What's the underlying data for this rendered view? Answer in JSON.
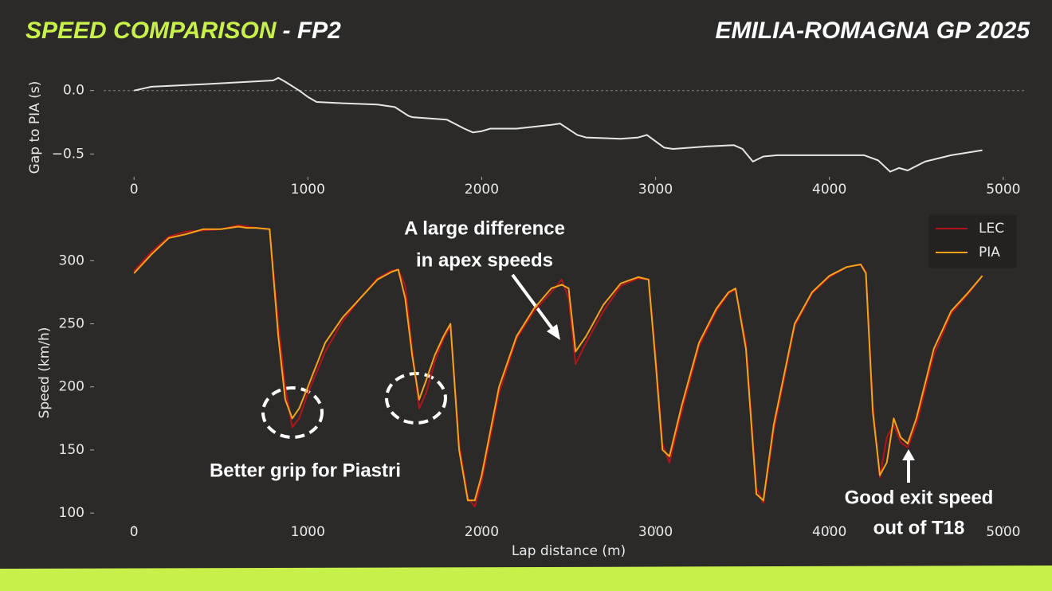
{
  "header": {
    "title": "SPEED COMPARISON",
    "session": "- FP2",
    "event": "EMILIA-ROMAGNA GP 2025"
  },
  "chart_data": [
    {
      "type": "line",
      "ylabel": "Gap to PIA (s)",
      "x": [
        0,
        100,
        400,
        800,
        830,
        870,
        950,
        1000,
        1050,
        1200,
        1400,
        1500,
        1580,
        1600,
        1800,
        1900,
        1950,
        2000,
        2050,
        2200,
        2400,
        2450,
        2550,
        2600,
        2800,
        2900,
        2950,
        3050,
        3100,
        3300,
        3450,
        3500,
        3560,
        3620,
        3700,
        4000,
        4200,
        4280,
        4350,
        4400,
        4450,
        4550,
        4700,
        4880
      ],
      "values": [
        0.0,
        0.03,
        0.05,
        0.08,
        0.1,
        0.07,
        0.0,
        -0.05,
        -0.09,
        -0.1,
        -0.11,
        -0.13,
        -0.2,
        -0.21,
        -0.23,
        -0.3,
        -0.33,
        -0.32,
        -0.3,
        -0.3,
        -0.27,
        -0.26,
        -0.35,
        -0.37,
        -0.38,
        -0.37,
        -0.35,
        -0.45,
        -0.46,
        -0.44,
        -0.43,
        -0.46,
        -0.56,
        -0.52,
        -0.51,
        -0.51,
        -0.51,
        -0.55,
        -0.64,
        -0.61,
        -0.63,
        -0.56,
        -0.51,
        -0.47
      ],
      "color": "#e6e6e6",
      "hline": 0,
      "xlim": [
        -175,
        5120
      ],
      "ylim": [
        -0.68,
        0.13
      ],
      "xticks": [
        0,
        1000,
        2000,
        3000,
        4000,
        5000
      ],
      "yticks": [
        {
          "value": 0,
          "label": "0.0"
        },
        {
          "value": -0.5,
          "label": "−0.5"
        }
      ]
    },
    {
      "type": "line",
      "xlabel": "Lap distance (m)",
      "ylabel": "Speed (km/h)",
      "x": [
        0,
        100,
        200,
        300,
        400,
        500,
        600,
        650,
        700,
        780,
        830,
        870,
        910,
        950,
        1000,
        1100,
        1200,
        1300,
        1400,
        1480,
        1520,
        1560,
        1600,
        1640,
        1680,
        1730,
        1780,
        1820,
        1870,
        1920,
        1960,
        2000,
        2100,
        2200,
        2300,
        2400,
        2460,
        2500,
        2540,
        2600,
        2700,
        2800,
        2900,
        2960,
        3000,
        3040,
        3080,
        3150,
        3250,
        3350,
        3420,
        3460,
        3520,
        3580,
        3620,
        3680,
        3800,
        3900,
        4000,
        4100,
        4180,
        4210,
        4250,
        4290,
        4330,
        4370,
        4410,
        4450,
        4500,
        4600,
        4700,
        4800,
        4880
      ],
      "series": [
        {
          "name": "LEC",
          "color": "#b3141b",
          "values": [
            292,
            307,
            319,
            323,
            324,
            325,
            328,
            327,
            326,
            325,
            250,
            200,
            168,
            175,
            195,
            228,
            252,
            270,
            286,
            292,
            293,
            280,
            230,
            183,
            195,
            220,
            238,
            248,
            155,
            112,
            105,
            125,
            195,
            238,
            260,
            275,
            285,
            270,
            218,
            235,
            260,
            280,
            286,
            285,
            225,
            155,
            140,
            180,
            232,
            260,
            274,
            277,
            235,
            120,
            108,
            165,
            248,
            274,
            287,
            295,
            297,
            291,
            185,
            128,
            160,
            170,
            156,
            152,
            170,
            225,
            258,
            274,
            288
          ]
        },
        {
          "name": "PIA",
          "color": "#f5a31a",
          "values": [
            290,
            305,
            318,
            321,
            325,
            325,
            327,
            326,
            326,
            325,
            240,
            190,
            175,
            183,
            200,
            235,
            255,
            270,
            285,
            291,
            293,
            270,
            225,
            190,
            205,
            225,
            240,
            250,
            150,
            110,
            110,
            130,
            200,
            240,
            262,
            278,
            281,
            278,
            228,
            240,
            265,
            282,
            287,
            285,
            220,
            150,
            145,
            185,
            235,
            262,
            275,
            278,
            230,
            115,
            110,
            170,
            250,
            275,
            288,
            295,
            297,
            290,
            180,
            130,
            140,
            175,
            160,
            155,
            175,
            230,
            260,
            275,
            288
          ]
        }
      ],
      "legend": "upper right",
      "xlim": [
        -175,
        5120
      ],
      "ylim": [
        90,
        333
      ],
      "xticks": [
        0,
        1000,
        2000,
        3000,
        4000,
        5000
      ],
      "yticks": [
        100,
        150,
        200,
        250,
        300
      ],
      "annotations": [
        {
          "lines": [
            "Better grip for Piastri"
          ]
        },
        {
          "lines": [
            "A large difference",
            "in apex speeds"
          ]
        },
        {
          "lines": [
            "Good exit speed",
            "out of T18"
          ]
        }
      ]
    }
  ]
}
